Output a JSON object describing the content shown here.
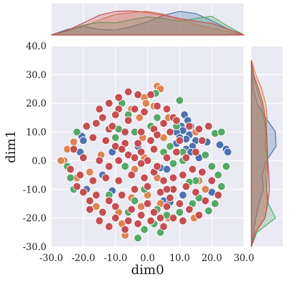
{
  "chart_data": {
    "type": "scatter",
    "style": "joint plot with marginal KDE distributions",
    "title": "",
    "xlabel": "dim0",
    "ylabel": "dim1",
    "xlim": [
      -30,
      30
    ],
    "ylim": [
      -30,
      40
    ],
    "xticks": [
      "-30.0",
      "-20.0",
      "-10.0",
      "0.0",
      "10.0",
      "20.0",
      "30.0"
    ],
    "yticks": [
      "-30.0",
      "-20.0",
      "-10.0",
      "0.0",
      "10.0",
      "20.0",
      "30.0",
      "40.0"
    ],
    "grid": true,
    "legend": "none",
    "series": [
      {
        "color": "#4C72B0",
        "points": [
          [
            11.5,
            16
          ],
          [
            12.5,
            14
          ],
          [
            10.5,
            12
          ],
          [
            13.5,
            12
          ],
          [
            11,
            10.5
          ],
          [
            9,
            10
          ],
          [
            13,
            9
          ],
          [
            15,
            7
          ],
          [
            12,
            7.5
          ],
          [
            10,
            8
          ],
          [
            14,
            5
          ],
          [
            12,
            4
          ],
          [
            18.5,
            6.5
          ],
          [
            22.5,
            5.5
          ],
          [
            24.5,
            4
          ],
          [
            25,
            3
          ],
          [
            9,
            6
          ],
          [
            13.5,
            3
          ],
          [
            -20.5,
            8.5
          ],
          [
            -20,
            7
          ],
          [
            -21,
            3
          ],
          [
            -11,
            3
          ],
          [
            -3,
            5
          ],
          [
            -19,
            -10
          ],
          [
            -11,
            -10.5
          ],
          [
            -14,
            -5
          ],
          [
            5,
            -14
          ],
          [
            7,
            -14.5
          ],
          [
            11,
            -12
          ],
          [
            20,
            -11
          ],
          [
            4,
            -2.5
          ],
          [
            6,
            -3
          ],
          [
            16,
            1
          ]
        ]
      },
      {
        "color": "#DD8452",
        "points": [
          [
            3,
            26
          ],
          [
            4,
            25
          ],
          [
            -1,
            22
          ],
          [
            -5,
            18
          ],
          [
            -0.5,
            20
          ],
          [
            2,
            19
          ],
          [
            -2.5,
            15
          ],
          [
            6.5,
            15
          ],
          [
            15,
            10
          ],
          [
            -23,
            6.5
          ],
          [
            -25,
            4
          ],
          [
            -26,
            0
          ],
          [
            -27,
            0
          ],
          [
            -18,
            -4
          ],
          [
            -22,
            -6
          ],
          [
            -14.5,
            2
          ],
          [
            -1.5,
            8
          ],
          [
            5,
            8
          ],
          [
            3,
            -6
          ],
          [
            -4,
            -3
          ],
          [
            -8,
            -22
          ],
          [
            -16,
            -16
          ],
          [
            -9,
            -18
          ],
          [
            -2,
            -16
          ],
          [
            4,
            -15
          ],
          [
            6.5,
            -20
          ],
          [
            -5,
            -13
          ],
          [
            -7,
            -26
          ],
          [
            0,
            -12
          ],
          [
            14.5,
            -20
          ],
          [
            18,
            -10
          ],
          [
            -19,
            12
          ],
          [
            -1,
            1
          ],
          [
            16,
            -7
          ]
        ]
      },
      {
        "color": "#55A868",
        "points": [
          [
            -8,
            20
          ],
          [
            -6,
            16
          ],
          [
            2.5,
            23.5
          ],
          [
            10,
            21
          ],
          [
            3,
            15
          ],
          [
            -4,
            10
          ],
          [
            1,
            12
          ],
          [
            9,
            12
          ],
          [
            5,
            3
          ],
          [
            11,
            3
          ],
          [
            7,
            5
          ],
          [
            -25,
            -2
          ],
          [
            -24,
            -6
          ],
          [
            -23,
            -10
          ],
          [
            -12,
            -12
          ],
          [
            -10,
            8
          ],
          [
            -22,
            10
          ],
          [
            -7,
            -2
          ],
          [
            -4,
            -14
          ],
          [
            -6,
            -18
          ],
          [
            -1,
            -24
          ],
          [
            -3,
            -27
          ],
          [
            2,
            -22
          ],
          [
            6,
            -19
          ],
          [
            3,
            -17
          ],
          [
            10,
            -18
          ],
          [
            14,
            -15
          ],
          [
            15,
            -7
          ],
          [
            18,
            2
          ],
          [
            21,
            9.5
          ],
          [
            23,
            10
          ],
          [
            20,
            -2
          ],
          [
            22,
            -5
          ],
          [
            23,
            -9
          ],
          [
            21,
            -15
          ],
          [
            19,
            -17.5
          ],
          [
            16,
            -13
          ],
          [
            11,
            0
          ],
          [
            8,
            -1
          ],
          [
            -1,
            -10
          ],
          [
            -9,
            11
          ],
          [
            24.5,
            -2
          ],
          [
            13,
            -7.5
          ],
          [
            4,
            -25
          ]
        ]
      },
      {
        "color": "#C44E52",
        "points": [
          [
            -6,
            24
          ],
          [
            -3,
            23
          ],
          [
            1,
            23
          ],
          [
            -9,
            22
          ],
          [
            -12,
            20
          ],
          [
            -15,
            18
          ],
          [
            -9,
            18
          ],
          [
            -4,
            18
          ],
          [
            -10,
            16
          ],
          [
            -6,
            14
          ],
          [
            -14,
            15
          ],
          [
            -16,
            13
          ],
          [
            -12,
            11
          ],
          [
            -7,
            10
          ],
          [
            -2,
            10
          ],
          [
            2,
            11
          ],
          [
            5,
            13
          ],
          [
            8,
            15
          ],
          [
            6,
            18
          ],
          [
            3,
            19
          ],
          [
            -1,
            17
          ],
          [
            -19,
            12
          ],
          [
            -17,
            8
          ],
          [
            -13,
            7
          ],
          [
            -10,
            5
          ],
          [
            -7,
            6
          ],
          [
            -3,
            6
          ],
          [
            1,
            7
          ],
          [
            3,
            9
          ],
          [
            7,
            10
          ],
          [
            9,
            14
          ],
          [
            -23,
            4
          ],
          [
            -20,
            1
          ],
          [
            -15,
            0
          ],
          [
            -12,
            -2
          ],
          [
            -9,
            0
          ],
          [
            -6,
            2
          ],
          [
            -2,
            3
          ],
          [
            2,
            4
          ],
          [
            6,
            1
          ],
          [
            9,
            3
          ],
          [
            12,
            1
          ],
          [
            15,
            3
          ],
          [
            17,
            7
          ],
          [
            16,
            11
          ],
          [
            19,
            12
          ],
          [
            -24,
            -3
          ],
          [
            -21,
            -5
          ],
          [
            -17,
            -7
          ],
          [
            -13,
            -6
          ],
          [
            -9,
            -7
          ],
          [
            -5,
            -5
          ],
          [
            -1,
            -6
          ],
          [
            2,
            -4
          ],
          [
            5,
            -7
          ],
          [
            8,
            -6
          ],
          [
            11,
            -5
          ],
          [
            14,
            -3
          ],
          [
            17,
            -4
          ],
          [
            20,
            -7
          ],
          [
            22,
            -12
          ],
          [
            -20,
            -11
          ],
          [
            -16,
            -12
          ],
          [
            -12,
            -14
          ],
          [
            -8,
            -12
          ],
          [
            -4,
            -10
          ],
          [
            0,
            -9
          ],
          [
            4,
            -11
          ],
          [
            8,
            -10
          ],
          [
            12,
            -9
          ],
          [
            15,
            -11
          ],
          [
            18,
            -14
          ],
          [
            -18,
            -17
          ],
          [
            -14,
            -18
          ],
          [
            -10,
            -20
          ],
          [
            -6,
            -21
          ],
          [
            -2,
            -19
          ],
          [
            2,
            -18
          ],
          [
            6,
            -16
          ],
          [
            10,
            -15
          ],
          [
            13,
            -17
          ],
          [
            16,
            -19
          ],
          [
            -12,
            -23
          ],
          [
            -7,
            -24
          ],
          [
            -3,
            -22
          ],
          [
            1,
            -21
          ],
          [
            5,
            -23
          ],
          [
            8,
            -20
          ],
          [
            11,
            -21
          ],
          [
            -15,
            -21
          ],
          [
            -5,
            -17
          ],
          [
            0,
            -15
          ],
          [
            7,
            -13
          ],
          [
            -10,
            -16
          ],
          [
            3,
            -2
          ],
          [
            0,
            0
          ],
          [
            -4,
            1
          ],
          [
            10,
            7
          ],
          [
            4,
            -20
          ],
          [
            -18,
            -14
          ],
          [
            -22,
            -9
          ],
          [
            13,
            12
          ],
          [
            -11,
            12
          ],
          [
            -8,
            4
          ],
          [
            -2,
            -1
          ],
          [
            6,
            -10
          ]
        ]
      }
    ],
    "marginal_top_kde": [
      {
        "color": "#4C72B0",
        "x": [
          -30,
          -25,
          -20,
          -15,
          -10,
          -5,
          0,
          5,
          10,
          15,
          20,
          25,
          30
        ],
        "density": [
          0,
          0.2,
          0.32,
          0.2,
          0.18,
          0.3,
          0.48,
          0.72,
          0.86,
          0.78,
          0.52,
          0.22,
          0
        ]
      },
      {
        "color": "#DD8452",
        "x": [
          -30,
          -25,
          -20,
          -15,
          -10,
          -5,
          0,
          5,
          10,
          15,
          20,
          25,
          30
        ],
        "density": [
          0,
          0.14,
          0.3,
          0.55,
          0.75,
          0.82,
          0.86,
          0.76,
          0.56,
          0.38,
          0.24,
          0.12,
          0
        ]
      },
      {
        "color": "#55A868",
        "x": [
          -30,
          -25,
          -20,
          -15,
          -10,
          -5,
          0,
          5,
          10,
          15,
          20,
          25,
          30
        ],
        "density": [
          0,
          0.16,
          0.36,
          0.46,
          0.44,
          0.56,
          0.66,
          0.6,
          0.5,
          0.6,
          0.68,
          0.32,
          0
        ]
      },
      {
        "color": "#C44E52",
        "x": [
          -30,
          -25,
          -20,
          -15,
          -10,
          -5,
          0,
          5,
          10,
          15,
          20,
          25,
          30
        ],
        "density": [
          0,
          0.16,
          0.44,
          0.72,
          0.86,
          0.88,
          0.82,
          0.72,
          0.6,
          0.5,
          0.42,
          0.22,
          0
        ]
      }
    ],
    "marginal_right_kde": [
      {
        "color": "#4C72B0",
        "y": [
          -30,
          -25,
          -20,
          -15,
          -10,
          -5,
          0,
          5,
          10,
          15,
          20,
          25,
          30,
          35
        ],
        "density": [
          0,
          0.08,
          0.16,
          0.28,
          0.44,
          0.4,
          0.55,
          0.9,
          0.88,
          0.52,
          0.2,
          0.08,
          0.02,
          0
        ]
      },
      {
        "color": "#DD8452",
        "y": [
          -30,
          -25,
          -20,
          -15,
          -10,
          -5,
          0,
          5,
          10,
          15,
          20,
          25,
          30,
          35
        ],
        "density": [
          0,
          0.16,
          0.5,
          0.58,
          0.55,
          0.5,
          0.6,
          0.56,
          0.52,
          0.58,
          0.52,
          0.38,
          0.16,
          0
        ]
      },
      {
        "color": "#55A868",
        "y": [
          -30,
          -25,
          -20,
          -15,
          -10,
          -5,
          0,
          5,
          10,
          15,
          20,
          25,
          30,
          35
        ],
        "density": [
          0,
          0.2,
          0.88,
          0.62,
          0.56,
          0.58,
          0.6,
          0.5,
          0.55,
          0.44,
          0.36,
          0.2,
          0.06,
          0
        ]
      },
      {
        "color": "#C44E52",
        "y": [
          -30,
          -25,
          -20,
          -15,
          -10,
          -5,
          0,
          5,
          10,
          15,
          20,
          25,
          30,
          35
        ],
        "density": [
          0,
          0.14,
          0.5,
          0.6,
          0.66,
          0.64,
          0.6,
          0.58,
          0.56,
          0.5,
          0.42,
          0.26,
          0.08,
          0
        ]
      }
    ]
  }
}
